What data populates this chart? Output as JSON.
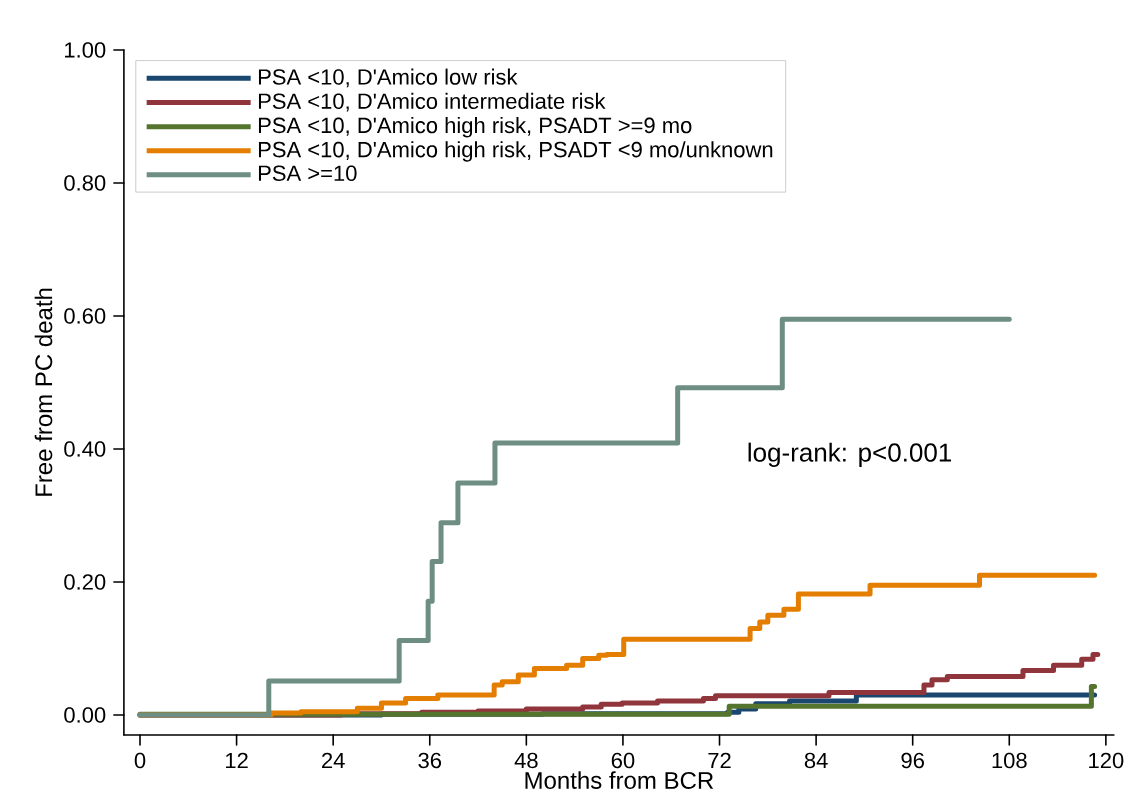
{
  "chart_data": {
    "type": "step",
    "xlabel": "Months from BCR",
    "ylabel": "Free from PC death",
    "xlim": [
      -2,
      121
    ],
    "ylim": [
      -0.03,
      1.0
    ],
    "xticks": [
      0,
      12,
      24,
      36,
      48,
      60,
      72,
      84,
      96,
      108,
      120
    ],
    "yticks": [
      {
        "value": 0,
        "label": "0.00"
      },
      {
        "value": 0.2,
        "label": "0.20"
      },
      {
        "value": 0.4,
        "label": "0.40"
      },
      {
        "value": 0.6,
        "label": "0.60"
      },
      {
        "value": 0.8,
        "label": "0.80"
      },
      {
        "value": 1.0,
        "label": "1.00"
      }
    ],
    "grid": false,
    "legend": "top left",
    "marker": "none",
    "line_style": "solid",
    "annotations": [
      "log-rank: p<0.001"
    ],
    "series": [
      {
        "name": "PSA <10, D'Amico low risk",
        "color": "#1a476f",
        "x": [
          0,
          30,
          50,
          73,
          74.4,
          76.5,
          80.7,
          89,
          118.6
        ],
        "values": [
          0,
          0.001,
          0.002,
          0.004,
          0.009,
          0.017,
          0.021,
          0.03,
          0.03
        ]
      },
      {
        "name": "PSA <10, D'Amico intermediate risk",
        "color": "#90353b",
        "x": [
          0,
          25,
          35,
          42,
          48,
          55,
          57.3,
          59.9,
          64.3,
          70,
          71.5,
          85.6,
          97.4,
          98.4,
          100.3,
          109.7,
          113.5,
          117,
          118.4,
          119
        ],
        "values": [
          0,
          0.002,
          0.004,
          0.006,
          0.009,
          0.012,
          0.016,
          0.018,
          0.021,
          0.025,
          0.029,
          0.034,
          0.045,
          0.053,
          0.058,
          0.067,
          0.075,
          0.084,
          0.091,
          0.091
        ]
      },
      {
        "name": "PSA <10, D'Amico high risk, PSADT >=9 mo",
        "color": "#55752f",
        "x": [
          0,
          73.2,
          118.2,
          118.6
        ],
        "values": [
          0.001,
          0.013,
          0.043,
          0.043
        ]
      },
      {
        "name": "PSA <10, D'Amico high risk, PSADT <9 mo/unknown",
        "color": "#e37e00",
        "x": [
          0,
          16.3,
          20,
          27,
          30,
          33,
          37,
          44,
          45,
          47,
          49,
          53,
          55,
          57,
          58,
          60.1,
          75.8,
          77,
          78,
          80,
          81.8,
          90.7,
          104.3,
          118.6
        ],
        "values": [
          0,
          0.003,
          0.005,
          0.01,
          0.018,
          0.025,
          0.03,
          0.045,
          0.05,
          0.06,
          0.07,
          0.075,
          0.085,
          0.09,
          0.091,
          0.114,
          0.13,
          0.14,
          0.15,
          0.159,
          0.182,
          0.195,
          0.21,
          0.21
        ]
      },
      {
        "name": "PSA >=10",
        "color": "#6e8e84",
        "x": [
          0,
          16,
          32.2,
          35.8,
          36.3,
          37.4,
          39.5,
          44.1,
          66.8,
          79.8,
          108
        ],
        "values": [
          0,
          0.051,
          0.112,
          0.171,
          0.231,
          0.289,
          0.349,
          0.409,
          0.492,
          0.595,
          0.595
        ]
      }
    ]
  }
}
